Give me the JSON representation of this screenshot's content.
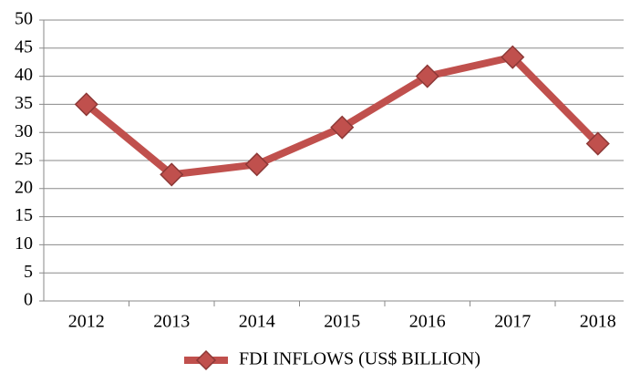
{
  "chart_data": {
    "type": "line",
    "categories": [
      "2012",
      "2013",
      "2014",
      "2015",
      "2016",
      "2017",
      "2018"
    ],
    "series": [
      {
        "name": "FDI INFLOWS (US$ BILLION)",
        "color": "#c0504d",
        "values": [
          35,
          22.5,
          24.3,
          30.9,
          40,
          43.4,
          28
        ]
      }
    ],
    "ylim": [
      0,
      50
    ],
    "yticks": [
      0,
      5,
      10,
      15,
      20,
      25,
      30,
      35,
      40,
      45,
      50
    ],
    "grid": true,
    "legend": "bottom"
  }
}
